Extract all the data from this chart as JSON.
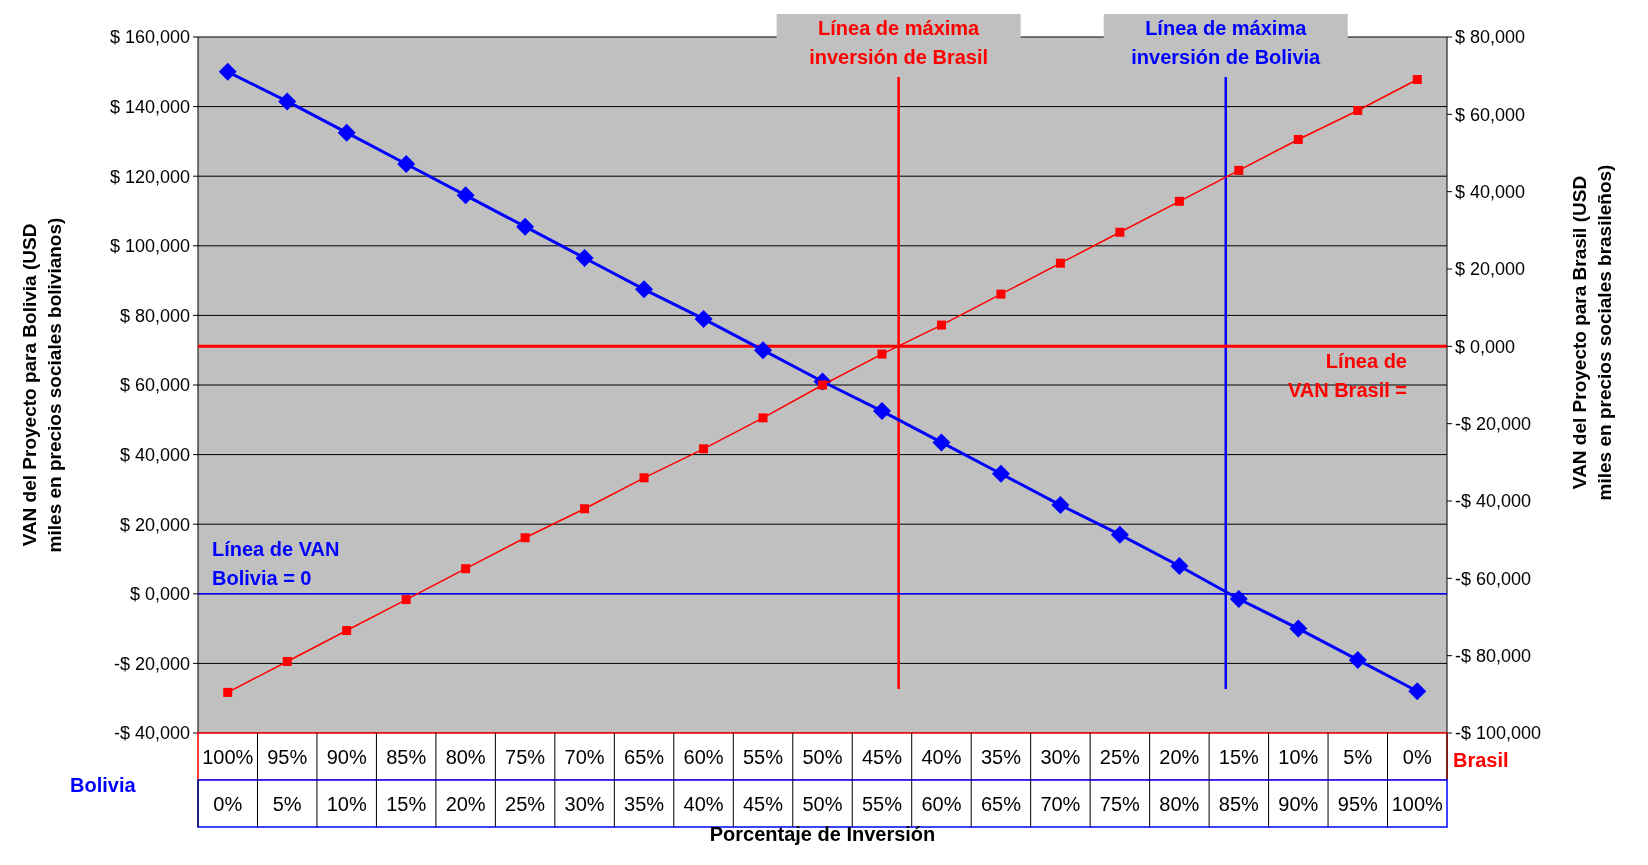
{
  "chart_data": {
    "type": "line",
    "xlabel": "Porcentaje de Inversión",
    "ylabel": "VAN del Proyecto para Bolivia (USD miles en precios sociales bolivianos)",
    "y2label": "VAN del Proyecto para Brasil (USD miles en precios sociales brasileños)",
    "x": [
      0,
      5,
      10,
      15,
      20,
      25,
      30,
      35,
      40,
      45,
      50,
      55,
      60,
      65,
      70,
      75,
      80,
      85,
      90,
      95,
      100
    ],
    "xlim": [
      -2.5,
      102.5
    ],
    "xticks": [
      {
        "value": 0,
        "label": "0%"
      },
      {
        "value": 5,
        "label": "5%"
      },
      {
        "value": 10,
        "label": "10%"
      },
      {
        "value": 15,
        "label": "15%"
      },
      {
        "value": 20,
        "label": "20%"
      },
      {
        "value": 25,
        "label": "25%"
      },
      {
        "value": 30,
        "label": "30%"
      },
      {
        "value": 35,
        "label": "35%"
      },
      {
        "value": 40,
        "label": "40%"
      },
      {
        "value": 45,
        "label": "45%"
      },
      {
        "value": 50,
        "label": "50%"
      },
      {
        "value": 55,
        "label": "55%"
      },
      {
        "value": 60,
        "label": "60%"
      },
      {
        "value": 65,
        "label": "65%"
      },
      {
        "value": 70,
        "label": "70%"
      },
      {
        "value": 75,
        "label": "75%"
      },
      {
        "value": 80,
        "label": "80%"
      },
      {
        "value": 85,
        "label": "85%"
      },
      {
        "value": 90,
        "label": "90%"
      },
      {
        "value": 95,
        "label": "95%"
      },
      {
        "value": 100,
        "label": "100%"
      }
    ],
    "x2lim": [
      102.5,
      -2.5
    ],
    "x2ticks": [
      {
        "value": 100,
        "label": "100%"
      },
      {
        "value": 95,
        "label": "95%"
      },
      {
        "value": 90,
        "label": "90%"
      },
      {
        "value": 85,
        "label": "85%"
      },
      {
        "value": 80,
        "label": "80%"
      },
      {
        "value": 75,
        "label": "75%"
      },
      {
        "value": 70,
        "label": "70%"
      },
      {
        "value": 65,
        "label": "65%"
      },
      {
        "value": 60,
        "label": "60%"
      },
      {
        "value": 55,
        "label": "55%"
      },
      {
        "value": 50,
        "label": "50%"
      },
      {
        "value": 45,
        "label": "45%"
      },
      {
        "value": 40,
        "label": "40%"
      },
      {
        "value": 35,
        "label": "35%"
      },
      {
        "value": 30,
        "label": "30%"
      },
      {
        "value": 25,
        "label": "25%"
      },
      {
        "value": 20,
        "label": "20%"
      },
      {
        "value": 15,
        "label": "15%"
      },
      {
        "value": 10,
        "label": "10%"
      },
      {
        "value": 5,
        "label": "5%"
      },
      {
        "value": 0,
        "label": "0%"
      }
    ],
    "ylim": [
      -40,
      160
    ],
    "yticks": [
      {
        "value": -40,
        "label": "-$ 40,000"
      },
      {
        "value": -20,
        "label": "-$ 20,000"
      },
      {
        "value": 0,
        "label": "$ 0,000"
      },
      {
        "value": 20,
        "label": "$ 20,000"
      },
      {
        "value": 40,
        "label": "$ 40,000"
      },
      {
        "value": 60,
        "label": "$ 60,000"
      },
      {
        "value": 80,
        "label": "$ 80,000"
      },
      {
        "value": 100,
        "label": "$ 100,000"
      },
      {
        "value": 120,
        "label": "$ 120,000"
      },
      {
        "value": 140,
        "label": "$ 140,000"
      },
      {
        "value": 160,
        "label": "$ 160,000"
      }
    ],
    "y2lim": [
      -100,
      80
    ],
    "y2ticks": [
      {
        "value": -100,
        "label": "-$ 100,000"
      },
      {
        "value": -80,
        "label": "-$ 80,000"
      },
      {
        "value": -60,
        "label": "-$ 60,000"
      },
      {
        "value": -40,
        "label": "-$ 40,000"
      },
      {
        "value": -20,
        "label": "-$ 20,000"
      },
      {
        "value": 0,
        "label": "$ 0,000"
      },
      {
        "value": 20,
        "label": "$ 20,000"
      },
      {
        "value": 40,
        "label": "$ 40,000"
      },
      {
        "value": 60,
        "label": "$ 60,000"
      },
      {
        "value": 80,
        "label": "$ 80,000"
      }
    ],
    "grid": "y",
    "legend": "bottom",
    "series": [
      {
        "name": "Bolivia",
        "color": "#0000ff",
        "marker": "diamond",
        "values": [
          150,
          141.5,
          132.5,
          123.5,
          114.5,
          105.5,
          96.5,
          87.5,
          79,
          70,
          61,
          52.5,
          43.5,
          34.5,
          25.5,
          17,
          8,
          -1.5,
          -10,
          -19,
          -28
        ]
      },
      {
        "name": "Brasil",
        "color": "#ff0000",
        "marker": "square",
        "axis": "y2",
        "values": [
          -89.5,
          -81.5,
          -73.5,
          -65.5,
          -57.5,
          -49.5,
          -42,
          -34,
          -26.5,
          -18.5,
          -10,
          -2,
          5.5,
          13.5,
          21.5,
          29.5,
          37.5,
          45.5,
          53.5,
          61,
          69
        ]
      }
    ],
    "ref_lines": [
      {
        "axis": "x",
        "value": 56.4,
        "label": "Línea de máxima inversión de Brasil",
        "color": "#ff0000"
      },
      {
        "axis": "x",
        "value": 83.9,
        "label": "Línea de máxima inversión de Bolivia",
        "color": "#0000ff"
      },
      {
        "axis": "y",
        "value": 0,
        "label": "Línea de VAN Bolivia = 0",
        "color": "#0000ff"
      },
      {
        "axis": "y2",
        "value": 0,
        "label": "Línea de VAN Brasil =",
        "color": "#ff0000"
      }
    ]
  }
}
